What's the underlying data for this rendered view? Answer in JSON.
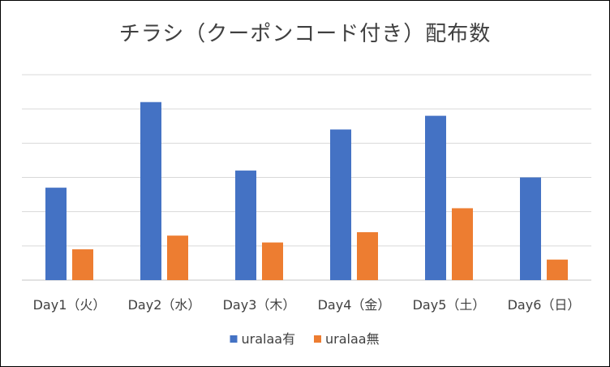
{
  "chart_data": {
    "type": "bar",
    "title": "チラシ（クーポンコード付き）配布数",
    "categories": [
      "Day1（火）",
      "Day2（水）",
      "Day3（木）",
      "Day4（金）",
      "Day5（土）",
      "Day6（日）"
    ],
    "series": [
      {
        "name": "uralaa有",
        "color": "#4472C4",
        "values": [
          27,
          52,
          32,
          44,
          48,
          30
        ]
      },
      {
        "name": "uralaa無",
        "color": "#ED7D31",
        "values": [
          9,
          13,
          11,
          14,
          21,
          6
        ]
      }
    ],
    "ylim": [
      0,
      60
    ],
    "grid": true,
    "legend_position": "bottom",
    "gridline_color": "#D9D9D9"
  }
}
